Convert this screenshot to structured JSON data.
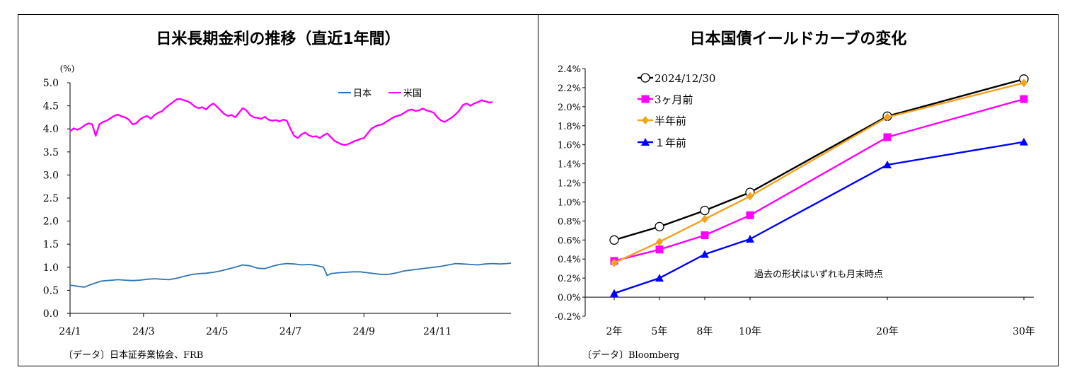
{
  "chart_data": [
    {
      "type": "line",
      "title": "日米長期金利の推移（直近1年間）",
      "unit_label": "(%)",
      "source": "〔データ〕日本証券業協会、FRB",
      "ylim": [
        0,
        5
      ],
      "y_ticks": [
        "0.0",
        "0.5",
        "1.0",
        "1.5",
        "2.0",
        "2.5",
        "3.0",
        "3.5",
        "4.0",
        "4.5",
        "5.0"
      ],
      "x_ticks": [
        "24/1",
        "24/3",
        "24/5",
        "24/7",
        "24/9",
        "24/11"
      ],
      "legend_position": "top-right",
      "series": [
        {
          "name": "日本",
          "color": "#2e75b6",
          "points": [
            [
              0,
              0.61
            ],
            [
              2,
              0.6
            ],
            [
              5,
              0.58
            ],
            [
              8,
              0.57
            ],
            [
              11,
              0.62
            ],
            [
              14,
              0.66
            ],
            [
              17,
              0.7
            ],
            [
              20,
              0.71
            ],
            [
              23,
              0.72
            ],
            [
              26,
              0.73
            ],
            [
              30,
              0.72
            ],
            [
              34,
              0.71
            ],
            [
              38,
              0.72
            ],
            [
              42,
              0.74
            ],
            [
              46,
              0.75
            ],
            [
              50,
              0.74
            ],
            [
              54,
              0.73
            ],
            [
              58,
              0.76
            ],
            [
              62,
              0.8
            ],
            [
              66,
              0.84
            ],
            [
              70,
              0.86
            ],
            [
              74,
              0.87
            ],
            [
              78,
              0.89
            ],
            [
              82,
              0.92
            ],
            [
              86,
              0.96
            ],
            [
              90,
              1.0
            ],
            [
              94,
              1.05
            ],
            [
              98,
              1.03
            ],
            [
              102,
              0.98
            ],
            [
              106,
              0.97
            ],
            [
              110,
              1.02
            ],
            [
              114,
              1.06
            ],
            [
              118,
              1.08
            ],
            [
              122,
              1.07
            ],
            [
              126,
              1.05
            ],
            [
              130,
              1.06
            ],
            [
              134,
              1.04
            ],
            [
              138,
              1.0
            ],
            [
              140,
              0.82
            ],
            [
              142,
              0.86
            ],
            [
              146,
              0.88
            ],
            [
              150,
              0.89
            ],
            [
              154,
              0.9
            ],
            [
              158,
              0.9
            ],
            [
              162,
              0.88
            ],
            [
              166,
              0.86
            ],
            [
              170,
              0.84
            ],
            [
              174,
              0.85
            ],
            [
              178,
              0.88
            ],
            [
              182,
              0.92
            ],
            [
              186,
              0.94
            ],
            [
              190,
              0.96
            ],
            [
              194,
              0.98
            ],
            [
              198,
              1.0
            ],
            [
              202,
              1.02
            ],
            [
              206,
              1.05
            ],
            [
              210,
              1.08
            ],
            [
              214,
              1.07
            ],
            [
              218,
              1.06
            ],
            [
              222,
              1.05
            ],
            [
              226,
              1.07
            ],
            [
              230,
              1.08
            ],
            [
              234,
              1.07
            ],
            [
              238,
              1.08
            ],
            [
              240,
              1.09
            ]
          ]
        },
        {
          "name": "米国",
          "color": "#ff00ff",
          "points": [
            [
              0,
              3.95
            ],
            [
              2,
              4.01
            ],
            [
              4,
              3.98
            ],
            [
              6,
              4.02
            ],
            [
              8,
              4.08
            ],
            [
              10,
              4.12
            ],
            [
              12,
              4.1
            ],
            [
              14,
              3.85
            ],
            [
              16,
              4.1
            ],
            [
              18,
              4.15
            ],
            [
              20,
              4.18
            ],
            [
              22,
              4.23
            ],
            [
              24,
              4.28
            ],
            [
              26,
              4.31
            ],
            [
              28,
              4.27
            ],
            [
              30,
              4.25
            ],
            [
              32,
              4.2
            ],
            [
              34,
              4.1
            ],
            [
              36,
              4.12
            ],
            [
              38,
              4.2
            ],
            [
              40,
              4.25
            ],
            [
              42,
              4.28
            ],
            [
              44,
              4.22
            ],
            [
              46,
              4.3
            ],
            [
              48,
              4.35
            ],
            [
              50,
              4.38
            ],
            [
              52,
              4.46
            ],
            [
              54,
              4.52
            ],
            [
              56,
              4.58
            ],
            [
              58,
              4.64
            ],
            [
              60,
              4.65
            ],
            [
              62,
              4.62
            ],
            [
              64,
              4.6
            ],
            [
              66,
              4.55
            ],
            [
              68,
              4.48
            ],
            [
              70,
              4.45
            ],
            [
              72,
              4.47
            ],
            [
              74,
              4.42
            ],
            [
              76,
              4.5
            ],
            [
              78,
              4.55
            ],
            [
              80,
              4.48
            ],
            [
              82,
              4.4
            ],
            [
              84,
              4.32
            ],
            [
              86,
              4.28
            ],
            [
              88,
              4.3
            ],
            [
              90,
              4.25
            ],
            [
              92,
              4.35
            ],
            [
              94,
              4.45
            ],
            [
              96,
              4.4
            ],
            [
              98,
              4.3
            ],
            [
              100,
              4.25
            ],
            [
              102,
              4.24
            ],
            [
              104,
              4.22
            ],
            [
              106,
              4.26
            ],
            [
              108,
              4.2
            ],
            [
              110,
              4.18
            ],
            [
              112,
              4.19
            ],
            [
              114,
              4.16
            ],
            [
              116,
              4.2
            ],
            [
              118,
              4.18
            ],
            [
              120,
              4.0
            ],
            [
              122,
              3.85
            ],
            [
              124,
              3.8
            ],
            [
              126,
              3.88
            ],
            [
              128,
              3.92
            ],
            [
              130,
              3.86
            ],
            [
              132,
              3.83
            ],
            [
              134,
              3.84
            ],
            [
              136,
              3.8
            ],
            [
              138,
              3.86
            ],
            [
              140,
              3.9
            ],
            [
              142,
              3.82
            ],
            [
              144,
              3.74
            ],
            [
              146,
              3.7
            ],
            [
              148,
              3.66
            ],
            [
              150,
              3.65
            ],
            [
              152,
              3.68
            ],
            [
              154,
              3.72
            ],
            [
              156,
              3.75
            ],
            [
              158,
              3.78
            ],
            [
              160,
              3.8
            ],
            [
              162,
              3.9
            ],
            [
              164,
              4.0
            ],
            [
              166,
              4.05
            ],
            [
              168,
              4.08
            ],
            [
              170,
              4.1
            ],
            [
              172,
              4.15
            ],
            [
              174,
              4.2
            ],
            [
              176,
              4.25
            ],
            [
              178,
              4.28
            ],
            [
              180,
              4.3
            ],
            [
              182,
              4.35
            ],
            [
              184,
              4.4
            ],
            [
              186,
              4.42
            ],
            [
              188,
              4.39
            ],
            [
              190,
              4.4
            ],
            [
              192,
              4.44
            ],
            [
              194,
              4.4
            ],
            [
              196,
              4.38
            ],
            [
              198,
              4.35
            ],
            [
              200,
              4.25
            ],
            [
              202,
              4.18
            ],
            [
              204,
              4.15
            ],
            [
              206,
              4.2
            ],
            [
              208,
              4.25
            ],
            [
              210,
              4.32
            ],
            [
              212,
              4.4
            ],
            [
              214,
              4.52
            ],
            [
              216,
              4.55
            ],
            [
              218,
              4.5
            ],
            [
              220,
              4.55
            ],
            [
              222,
              4.58
            ],
            [
              224,
              4.62
            ],
            [
              226,
              4.6
            ],
            [
              228,
              4.57
            ],
            [
              230,
              4.58
            ]
          ]
        }
      ]
    },
    {
      "type": "line",
      "title": "日本国債イールドカーブの変化",
      "source": "〔データ〕Bloomberg",
      "annotation": "過去の形状はいずれも月末時点",
      "ylim": [
        -0.2,
        2.4
      ],
      "y_ticks": [
        "-0.2%",
        "0.0%",
        "0.2%",
        "0.4%",
        "0.6%",
        "0.8%",
        "1.0%",
        "1.2%",
        "1.4%",
        "1.6%",
        "1.8%",
        "2.0%",
        "2.2%",
        "2.4%"
      ],
      "x": [
        2,
        5,
        8,
        10,
        20,
        30
      ],
      "x_ticks": [
        "2年",
        "5年",
        "8年",
        "10年",
        "20年",
        "30年"
      ],
      "legend_position": "top-left",
      "series": [
        {
          "name": "2024/12/30",
          "color": "#000000",
          "marker": "open-circle",
          "values": [
            0.6,
            0.74,
            0.91,
            1.1,
            1.9,
            2.29
          ]
        },
        {
          "name": "3ヶ月前",
          "color": "#ff00ff",
          "marker": "square",
          "values": [
            0.38,
            0.5,
            0.65,
            0.86,
            1.68,
            2.08
          ]
        },
        {
          "name": "半年前",
          "color": "#f4a21f",
          "marker": "diamond",
          "values": [
            0.36,
            0.58,
            0.82,
            1.06,
            1.89,
            2.25
          ]
        },
        {
          "name": "１年前",
          "color": "#0000ff",
          "marker": "triangle",
          "values": [
            0.04,
            0.2,
            0.45,
            0.61,
            1.39,
            1.63
          ]
        }
      ]
    }
  ]
}
